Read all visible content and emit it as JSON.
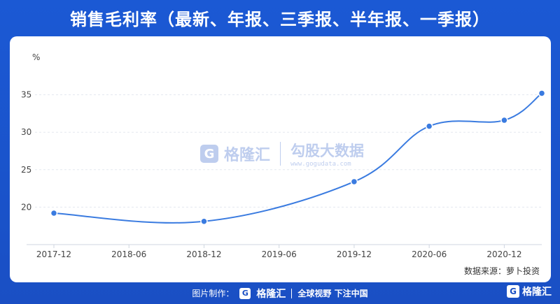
{
  "header": {
    "title": "销售毛利率（最新、年报、三季报、半年报、一季报）"
  },
  "chart_data": {
    "type": "line",
    "ylabel": "%",
    "ylim": [
      15,
      40
    ],
    "yticks": [
      20,
      25,
      30,
      35
    ],
    "xticks": [
      "2017-12",
      "2018-06",
      "2018-12",
      "2019-06",
      "2019-12",
      "2020-06",
      "2020-12"
    ],
    "series": [
      {
        "x": [
          "2017-12",
          "2018-12",
          "2019-12",
          "2020-06",
          "2020-12",
          "2021-03"
        ],
        "values": [
          19.2,
          18.1,
          23.4,
          30.8,
          31.6,
          35.2
        ]
      }
    ],
    "grid": true,
    "legend": "none",
    "line_color": "#3a7be0"
  },
  "source": {
    "text": "数据来源：萝卜投资"
  },
  "watermark": {
    "badge": "G",
    "name": "格隆汇",
    "name2": "勾股大数据",
    "url": "www.gogudata.com"
  },
  "footer": {
    "made_by": "图片制作：",
    "badge": "G",
    "logo": "格隆汇",
    "slogan": "全球视野 下注中国"
  },
  "corner": {
    "badge": "G",
    "logo": "格隆汇"
  }
}
